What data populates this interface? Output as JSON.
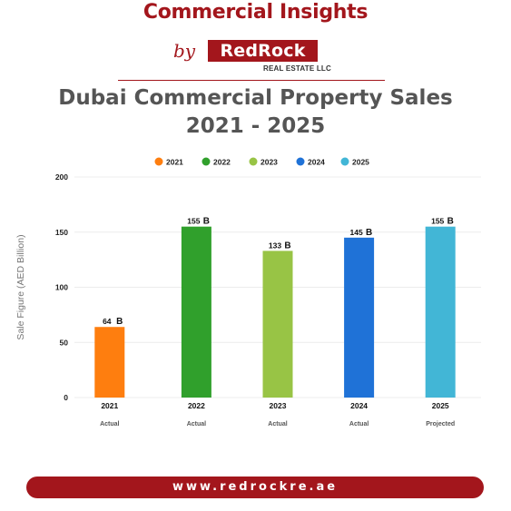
{
  "header": {
    "title": "Commercial Insights",
    "by": "by",
    "logo_text": "RedRock",
    "logo_sub": "REAL ESTATE LLC"
  },
  "footer": {
    "url": "www.redrockre.ae"
  },
  "colors": {
    "brand": "#a3161c",
    "title": "#555555"
  },
  "chart_data": {
    "type": "bar",
    "title": "Dubai Commercial Property Sales",
    "subtitle": "2021 - 2025",
    "ylabel": "Sale Figure (AED Billion)",
    "xlabel": "",
    "ylim": [
      0,
      200
    ],
    "yticks": [
      0,
      50,
      100,
      150,
      200
    ],
    "grid": true,
    "legend": "top-center",
    "categories": [
      "2021",
      "2022",
      "2023",
      "2024",
      "2025"
    ],
    "sublabels": [
      "Actual",
      "Actual",
      "Actual",
      "Actual",
      "Projected"
    ],
    "value_suffix": "B",
    "values": [
      64,
      155,
      133,
      145,
      155
    ],
    "colors": [
      "#fe7e0f",
      "#30a02c",
      "#98c445",
      "#1f72d7",
      "#42b6d6"
    ],
    "series": [
      {
        "name": "2021",
        "color": "#fe7e0f"
      },
      {
        "name": "2022",
        "color": "#30a02c"
      },
      {
        "name": "2023",
        "color": "#98c445"
      },
      {
        "name": "2024",
        "color": "#1f72d7"
      },
      {
        "name": "2025",
        "color": "#42b6d6"
      }
    ]
  }
}
